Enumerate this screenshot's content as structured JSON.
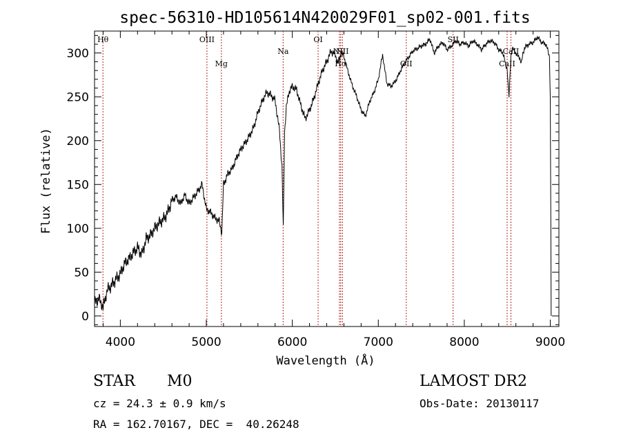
{
  "chart_data": {
    "type": "line",
    "title": "spec-56310-HD105614N420029F01_sp02-001.fits",
    "xlabel": "Wavelength (Å)",
    "ylabel": "Flux (relative)",
    "xlim": [
      3700,
      9100
    ],
    "ylim": [
      -12,
      325
    ],
    "x_ticks": [
      4000,
      5000,
      6000,
      7000,
      8000,
      9000
    ],
    "y_ticks": [
      0,
      50,
      100,
      150,
      200,
      250,
      300
    ],
    "grid": false,
    "series": [
      {
        "x": [
          3700,
          3750,
          3800,
          3850,
          3900,
          3950,
          4000,
          4050,
          4100,
          4150,
          4200,
          4250,
          4300,
          4350,
          4400,
          4450,
          4500,
          4550,
          4600,
          4650,
          4700,
          4750,
          4800,
          4850,
          4900,
          4950,
          5000,
          5050,
          5100,
          5150,
          5180,
          5200,
          5250,
          5300,
          5350,
          5400,
          5450,
          5500,
          5550,
          5600,
          5650,
          5700,
          5750,
          5800,
          5850,
          5880,
          5895,
          5910,
          5930,
          5960,
          6000,
          6050,
          6100,
          6150,
          6200,
          6250,
          6300,
          6350,
          6400,
          6450,
          6500,
          6530,
          6570,
          6600,
          6650,
          6700,
          6750,
          6800,
          6850,
          6900,
          6950,
          7000,
          7050,
          7100,
          7150,
          7200,
          7250,
          7300,
          7350,
          7400,
          7450,
          7500,
          7550,
          7600,
          7650,
          7700,
          7750,
          7800,
          7850,
          7900,
          7950,
          8000,
          8050,
          8100,
          8150,
          8200,
          8250,
          8300,
          8350,
          8400,
          8450,
          8498,
          8520,
          8542,
          8560,
          8600,
          8662,
          8700,
          8750,
          8800,
          8850,
          8900,
          8950,
          8990,
          9000,
          9010
        ],
        "y": [
          15,
          20,
          10,
          30,
          35,
          42,
          48,
          60,
          65,
          72,
          78,
          70,
          88,
          92,
          100,
          106,
          110,
          118,
          132,
          136,
          128,
          138,
          128,
          135,
          142,
          150,
          122,
          118,
          112,
          108,
          95,
          150,
          162,
          168,
          180,
          190,
          197,
          205,
          215,
          232,
          245,
          255,
          252,
          246,
          212,
          170,
          100,
          210,
          238,
          255,
          262,
          258,
          240,
          225,
          235,
          248,
          265,
          280,
          290,
          302,
          298,
          288,
          300,
          296,
          278,
          262,
          250,
          235,
          228,
          245,
          255,
          270,
          298,
          265,
          262,
          268,
          278,
          288,
          295,
          302,
          305,
          308,
          310,
          316,
          300,
          308,
          312,
          304,
          308,
          314,
          310,
          312,
          308,
          314,
          310,
          304,
          310,
          314,
          312,
          304,
          300,
          280,
          250,
          296,
          305,
          300,
          290,
          306,
          310,
          312,
          318,
          312,
          310,
          296,
          250,
          0
        ]
      }
    ],
    "spectral_lines": [
      {
        "label": "Hθ",
        "x": 3798,
        "row": "top"
      },
      {
        "label": "OIII",
        "x": 5007,
        "row": "top"
      },
      {
        "label": "Mg",
        "x": 5175,
        "row": "low"
      },
      {
        "label": "Na",
        "x": 5893,
        "row": "mid"
      },
      {
        "label": "OI",
        "x": 6300,
        "row": "top"
      },
      {
        "label": "NII",
        "x": 6548,
        "row": "mid"
      },
      {
        "label": "Hα",
        "x": 6563,
        "row": "low"
      },
      {
        "label": "NII",
        "x": 6583,
        "row": "mid"
      },
      {
        "label": "OII",
        "x": 7325,
        "row": "low"
      },
      {
        "label": "SII",
        "x": 7870,
        "row": "top"
      },
      {
        "label": "CaII",
        "x": 8498,
        "row": "low"
      },
      {
        "label": "CaII",
        "x": 8542,
        "row": "mid"
      }
    ]
  },
  "info": {
    "object_class": "STAR",
    "subclass": "M0",
    "survey": "LAMOST DR2",
    "cz": "cz = 24.3 ± 0.9 km/s",
    "obs_date": "Obs-Date: 20130117",
    "coords": "RA = 162.70167, DEC =  40.26248"
  }
}
